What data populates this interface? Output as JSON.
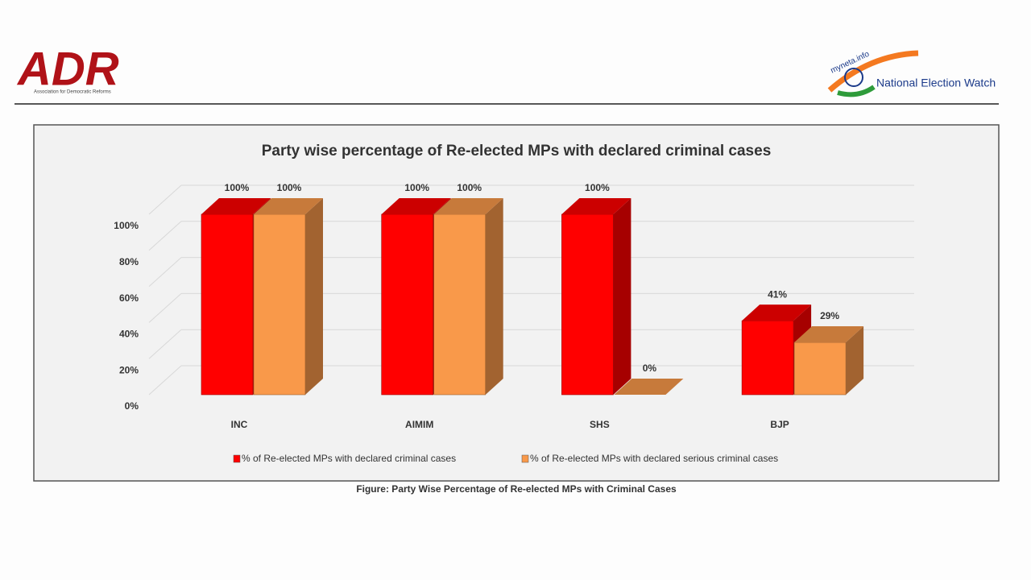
{
  "header": {
    "left_logo": "ADR",
    "left_logo_subtitle": "Association for Democratic Reforms",
    "right_logo_small": "myneta.info",
    "right_logo": "National Election Watch"
  },
  "chart_data": {
    "type": "bar3d",
    "title": "Party wise percentage of Re-elected MPs with declared criminal cases",
    "categories": [
      "INC",
      "AIMIM",
      "SHS",
      "BJP"
    ],
    "series": [
      {
        "name": "% of Re-elected MPs with declared criminal cases",
        "color": "#ff0000",
        "values": [
          100,
          100,
          100,
          41
        ],
        "value_labels": [
          "100%",
          "100%",
          "100%",
          "41%"
        ]
      },
      {
        "name": "% of Re-elected MPs with declared serious criminal cases",
        "color": "#f9994a",
        "values": [
          100,
          100,
          0,
          29
        ],
        "value_labels": [
          "100%",
          "100%",
          "0%",
          "29%"
        ]
      }
    ],
    "ylim": [
      0,
      100
    ],
    "yticks": [
      {
        "value": 0,
        "label": "0%"
      },
      {
        "value": 20,
        "label": "20%"
      },
      {
        "value": 40,
        "label": "40%"
      },
      {
        "value": 60,
        "label": "60%"
      },
      {
        "value": 80,
        "label": "80%"
      },
      {
        "value": 100,
        "label": "100%"
      }
    ],
    "grid": true,
    "legend": "bottom"
  },
  "caption": "Figure: Party Wise Percentage of Re-elected MPs with Criminal Cases"
}
